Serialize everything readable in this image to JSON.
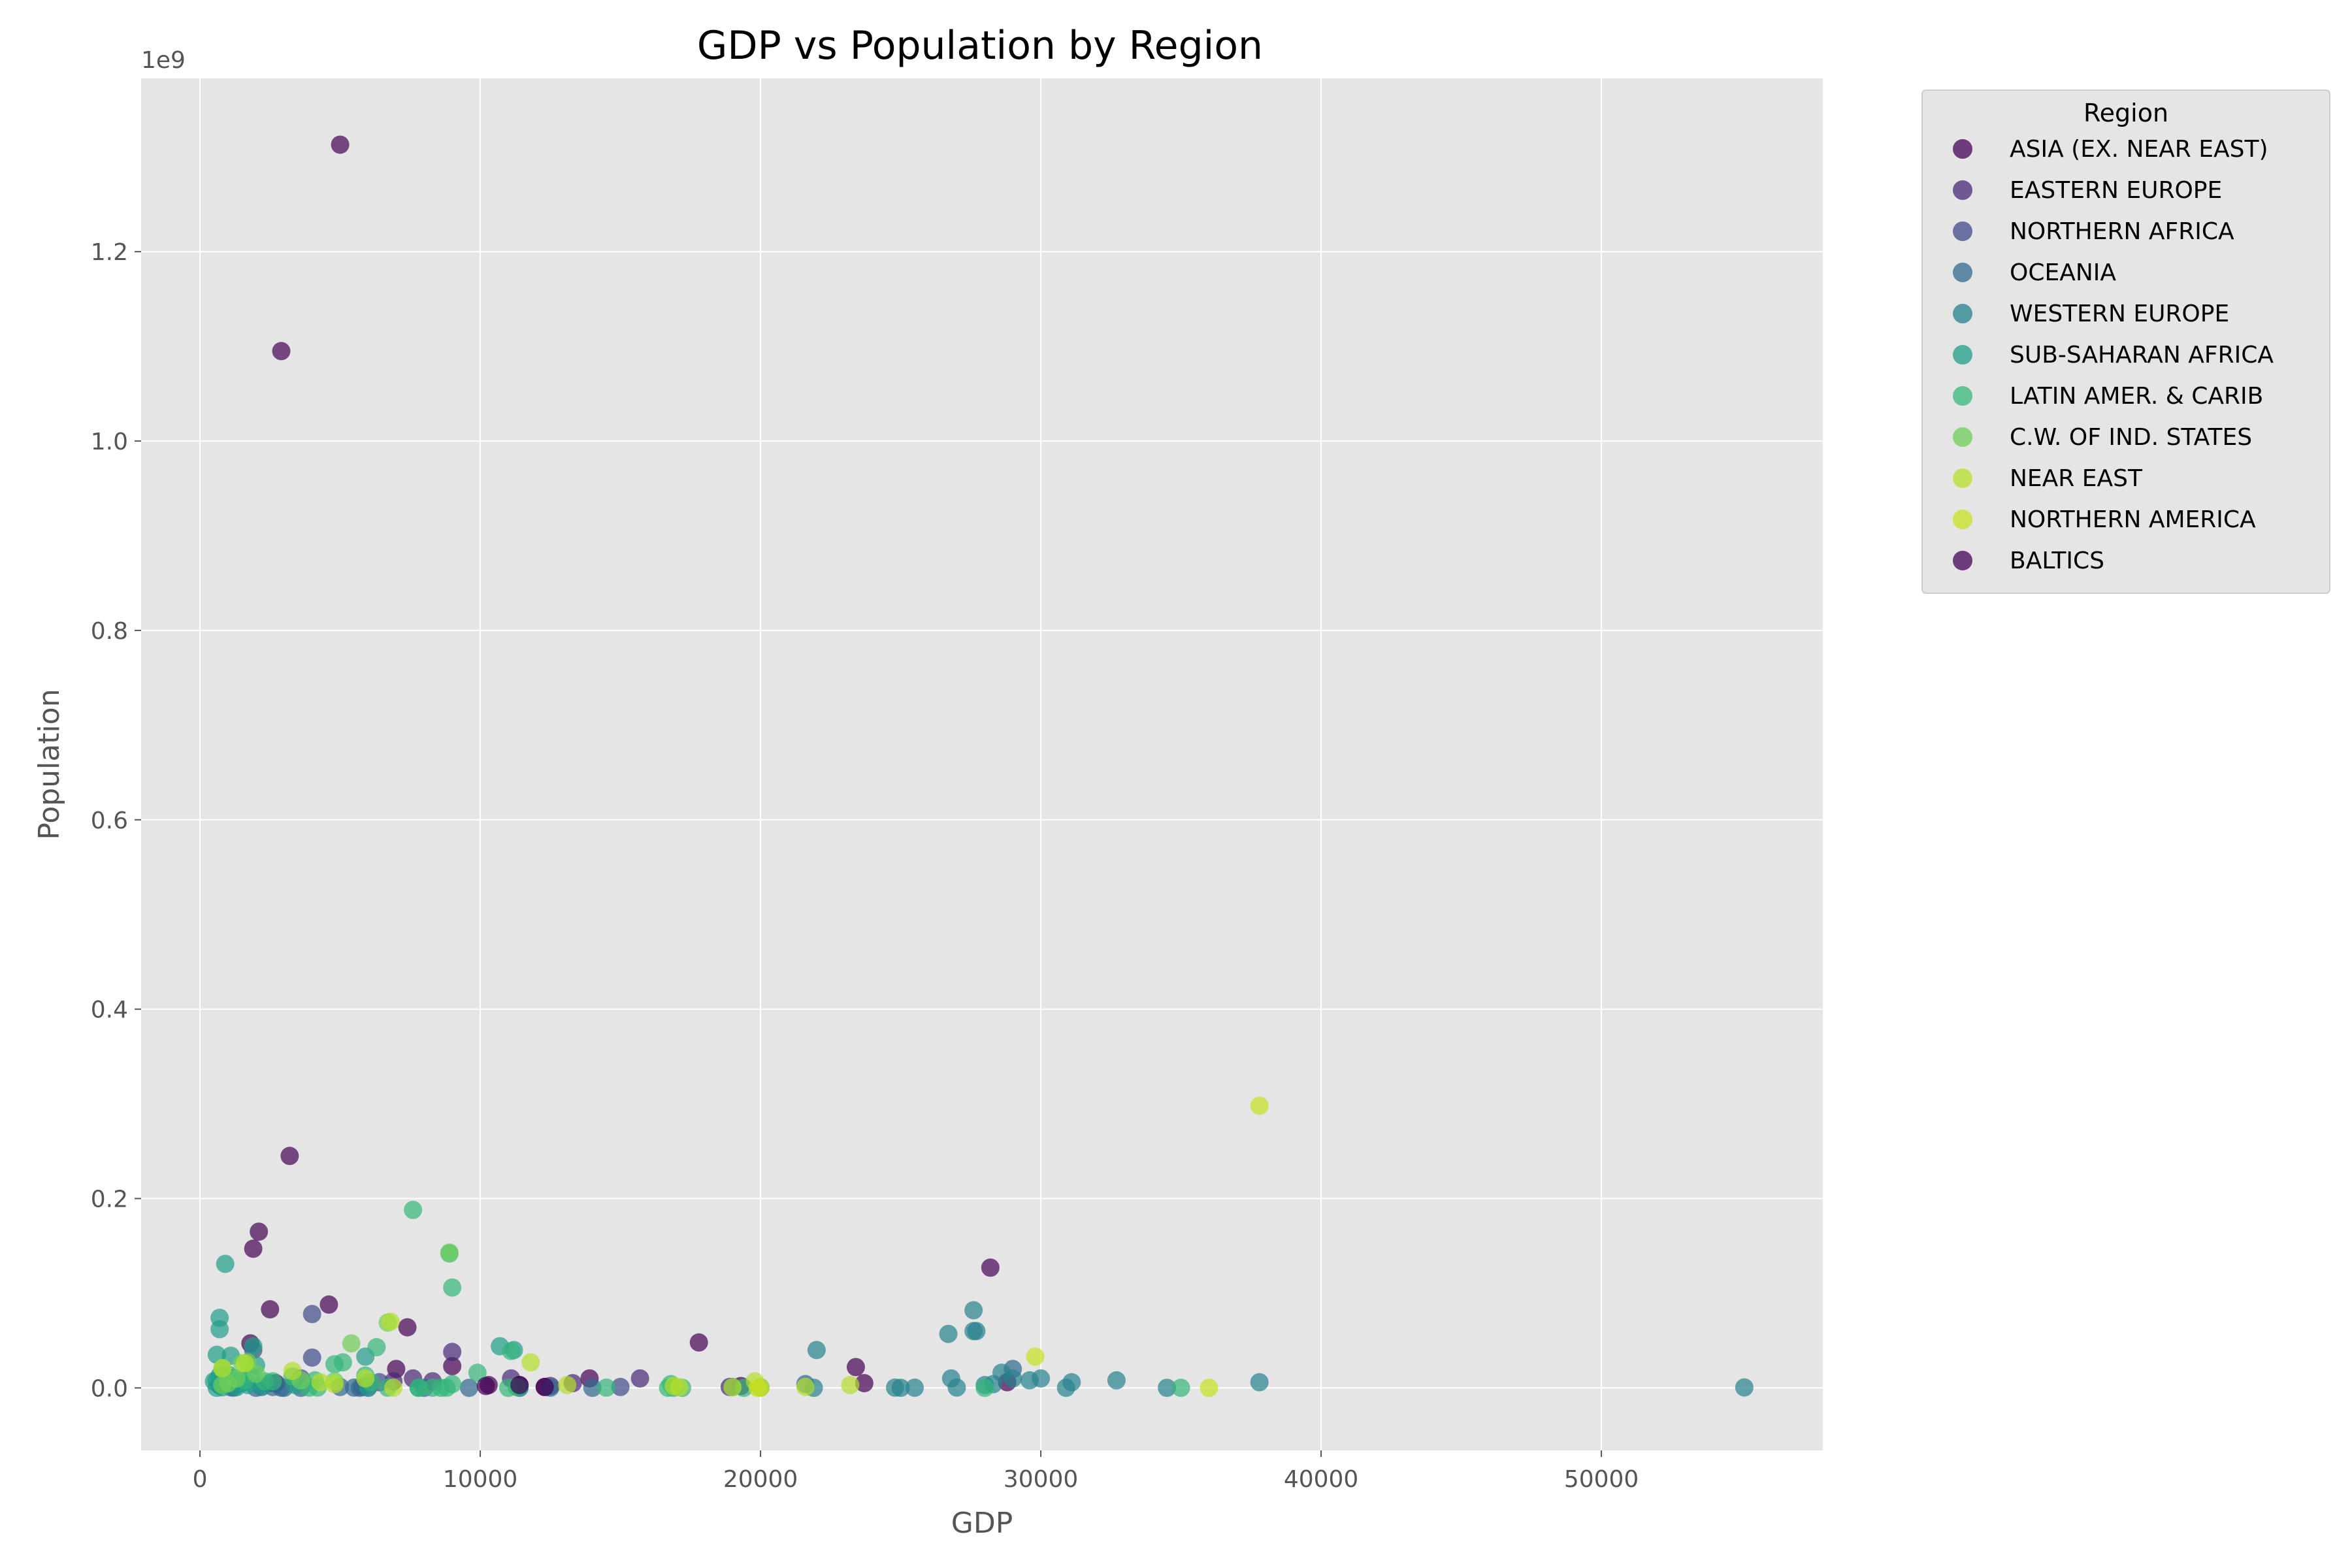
{
  "chart_data": {
    "type": "scatter",
    "title": "GDP vs Population by Region",
    "xlabel": "GDP",
    "ylabel": "Population",
    "y_offset_label": "1e9",
    "xlim": [
      -2100,
      57900
    ],
    "ylim": [
      -0.066,
      1.383
    ],
    "xticks": [
      0,
      10000,
      20000,
      30000,
      40000,
      50000
    ],
    "yticks": [
      0.0,
      0.2,
      0.4,
      0.6,
      0.8,
      1.0,
      1.2
    ],
    "ytick_labels": [
      "0.0",
      "0.2",
      "0.4",
      "0.6",
      "0.8",
      "1.0",
      "1.2"
    ],
    "grid": true,
    "legend": {
      "title": "Region",
      "placement": "outside-top-right"
    },
    "y_units": "1e9",
    "series": [
      {
        "name": "ASIA (EX. NEAR EAST)",
        "color": "#440154",
        "points": [
          [
            5000,
            1.313
          ],
          [
            2900,
            1.095
          ],
          [
            3200,
            0.245
          ],
          [
            2100,
            0.165
          ],
          [
            1900,
            0.147
          ],
          [
            2500,
            0.083
          ],
          [
            4600,
            0.088
          ],
          [
            7400,
            0.064
          ],
          [
            1800,
            0.047
          ],
          [
            7000,
            0.02
          ],
          [
            9000,
            0.023
          ],
          [
            28200,
            0.127
          ],
          [
            17800,
            0.048
          ],
          [
            23400,
            0.022
          ],
          [
            11400,
            0.003
          ],
          [
            10300,
            0.003
          ],
          [
            19300,
            0.002
          ],
          [
            13900,
            0.01
          ],
          [
            23700,
            0.005
          ],
          [
            28800,
            0.006
          ],
          [
            12300,
            0.001
          ],
          [
            700,
            0.003
          ],
          [
            2700,
            0.005
          ]
        ]
      },
      {
        "name": "EASTERN EUROPE",
        "color": "#482878",
        "points": [
          [
            9000,
            0.038
          ],
          [
            7600,
            0.01
          ],
          [
            11100,
            0.01
          ],
          [
            12500,
            0.002
          ],
          [
            15700,
            0.01
          ],
          [
            13300,
            0.005
          ],
          [
            18900,
            0.001
          ],
          [
            6900,
            0.007
          ],
          [
            8300,
            0.007
          ]
        ]
      },
      {
        "name": "NORTHERN AFRICA",
        "color": "#3e4a89",
        "points": [
          [
            4000,
            0.078
          ],
          [
            4000,
            0.032
          ],
          [
            6400,
            0.006
          ],
          [
            1900,
            0.04
          ],
          [
            3600,
            0.01
          ],
          [
            15000,
            0.001
          ]
        ]
      },
      {
        "name": "OCEANIA",
        "color": "#31688e",
        "points": [
          [
            29000,
            0.02
          ],
          [
            21600,
            0.004
          ],
          [
            5800,
            0.001
          ],
          [
            2500,
            0.005
          ],
          [
            2200,
            0.001
          ],
          [
            5000,
            0.001
          ],
          [
            2600,
            0.001
          ],
          [
            12500,
            0.0002
          ],
          [
            9600,
            0.0001
          ],
          [
            14000,
            0.0001
          ],
          [
            2000,
            0.0001
          ],
          [
            3600,
            0.0001
          ],
          [
            8000,
            0.0001
          ],
          [
            5500,
            0.0003
          ],
          [
            1100,
            0.0006
          ],
          [
            2900,
            0.0002
          ],
          [
            1200,
            0.0002
          ],
          [
            6000,
            0.0001
          ],
          [
            5700,
            0.0001
          ],
          [
            3000,
            0.0001
          ],
          [
            11400,
            0.0001
          ]
        ]
      },
      {
        "name": "WESTERN EUROPE",
        "color": "#26828e",
        "points": [
          [
            27600,
            0.082
          ],
          [
            27600,
            0.06
          ],
          [
            27700,
            0.06
          ],
          [
            26700,
            0.057
          ],
          [
            22000,
            0.04
          ],
          [
            28600,
            0.016
          ],
          [
            30000,
            0.01
          ],
          [
            29000,
            0.01
          ],
          [
            29600,
            0.008
          ],
          [
            31100,
            0.006
          ],
          [
            32700,
            0.008
          ],
          [
            37800,
            0.006
          ],
          [
            27000,
            0.0004
          ],
          [
            21900,
            0.0001
          ],
          [
            55100,
            0.0005
          ],
          [
            25000,
            0.0001
          ],
          [
            30900,
            0.0001
          ],
          [
            34500,
            0.0001
          ],
          [
            19000,
            0.001
          ],
          [
            26800,
            0.01
          ],
          [
            28300,
            0.004
          ],
          [
            28000,
            0.003
          ],
          [
            24800,
            0.0003
          ],
          [
            25500,
            0.0002
          ]
        ]
      },
      {
        "name": "SUB-SAHARAN AFRICA",
        "color": "#1f9e89",
        "points": [
          [
            900,
            0.131
          ],
          [
            700,
            0.074
          ],
          [
            700,
            0.062
          ],
          [
            600,
            0.035
          ],
          [
            1100,
            0.034
          ],
          [
            2000,
            0.024
          ],
          [
            1900,
            0.044
          ],
          [
            800,
            0.018
          ],
          [
            1800,
            0.012
          ],
          [
            1000,
            0.014
          ],
          [
            700,
            0.013
          ],
          [
            1200,
            0.01
          ],
          [
            900,
            0.009
          ],
          [
            600,
            0.008
          ],
          [
            500,
            0.007
          ],
          [
            1400,
            0.006
          ],
          [
            1500,
            0.005
          ],
          [
            700,
            0.004
          ],
          [
            1700,
            0.003
          ],
          [
            2200,
            0.002
          ],
          [
            5900,
            0.033
          ],
          [
            10700,
            0.044
          ],
          [
            11200,
            0.04
          ],
          [
            3400,
            0.003
          ],
          [
            6000,
            0.001
          ],
          [
            800,
            0.0006
          ],
          [
            1300,
            0.0008
          ],
          [
            11400,
            0.0005
          ],
          [
            600,
            0.0001
          ],
          [
            7800,
            0.0002
          ]
        ]
      },
      {
        "name": "LATIN AMER. & CARIB",
        "color": "#35b779",
        "points": [
          [
            7600,
            0.188
          ],
          [
            8900,
            0.142
          ],
          [
            9000,
            0.106
          ],
          [
            6300,
            0.043
          ],
          [
            11100,
            0.039
          ],
          [
            5100,
            0.027
          ],
          [
            4800,
            0.025
          ],
          [
            5900,
            0.013
          ],
          [
            9900,
            0.016
          ],
          [
            3300,
            0.012
          ],
          [
            2600,
            0.007
          ],
          [
            4100,
            0.008
          ],
          [
            6100,
            0.006
          ],
          [
            9000,
            0.004
          ],
          [
            16800,
            0.004
          ],
          [
            1600,
            0.008
          ],
          [
            2300,
            0.007
          ],
          [
            8300,
            0.0002
          ],
          [
            7800,
            0.0001
          ],
          [
            8600,
            0.0001
          ],
          [
            16900,
            0.0001
          ],
          [
            11000,
            0.0001
          ],
          [
            4200,
            0.0004
          ],
          [
            3900,
            0.0003
          ],
          [
            14500,
            0.0003
          ],
          [
            8800,
            0.0002
          ],
          [
            16700,
            0.0001
          ],
          [
            19400,
            0.0001
          ],
          [
            20000,
            0.0006
          ],
          [
            35000,
            0.0001
          ],
          [
            28000,
            0.0001
          ],
          [
            17200,
            0.0001
          ],
          [
            6700,
            0.0003
          ],
          [
            11300,
            0.001
          ]
        ]
      },
      {
        "name": "C.W. OF IND. STATES",
        "color": "#6ece58",
        "points": [
          [
            6700,
            0.069
          ],
          [
            5400,
            0.047
          ],
          [
            8900,
            0.143
          ],
          [
            1500,
            0.026
          ],
          [
            1700,
            0.027
          ],
          [
            2000,
            0.015
          ],
          [
            4800,
            0.007
          ],
          [
            1000,
            0.005
          ],
          [
            1300,
            0.01
          ],
          [
            3600,
            0.008
          ],
          [
            800,
            0.003
          ],
          [
            800,
            0.02
          ]
        ]
      },
      {
        "name": "NEAR EAST",
        "color": "#b5de2b",
        "points": [
          [
            11800,
            0.027
          ],
          [
            6800,
            0.07
          ],
          [
            1600,
            0.026
          ],
          [
            3300,
            0.018
          ],
          [
            800,
            0.021
          ],
          [
            5900,
            0.01
          ],
          [
            4300,
            0.006
          ],
          [
            19800,
            0.007
          ],
          [
            13100,
            0.003
          ],
          [
            4800,
            0.004
          ],
          [
            16900,
            0.002
          ],
          [
            21600,
            0.001
          ],
          [
            23200,
            0.003
          ],
          [
            17100,
            0.0008
          ],
          [
            19000,
            0.0007
          ],
          [
            6900,
            0.0002
          ]
        ]
      },
      {
        "name": "NORTHERN AMERICA",
        "color": "#c8e020",
        "points": [
          [
            37800,
            0.298
          ],
          [
            29800,
            0.033
          ],
          [
            36000,
            0.0001
          ],
          [
            20000,
            0.0001
          ],
          [
            19900,
            0.0001
          ]
        ]
      },
      {
        "name": "BALTICS",
        "color": "#440154",
        "points": [
          [
            11400,
            0.003
          ],
          [
            10200,
            0.002
          ],
          [
            12300,
            0.001
          ]
        ]
      }
    ]
  }
}
